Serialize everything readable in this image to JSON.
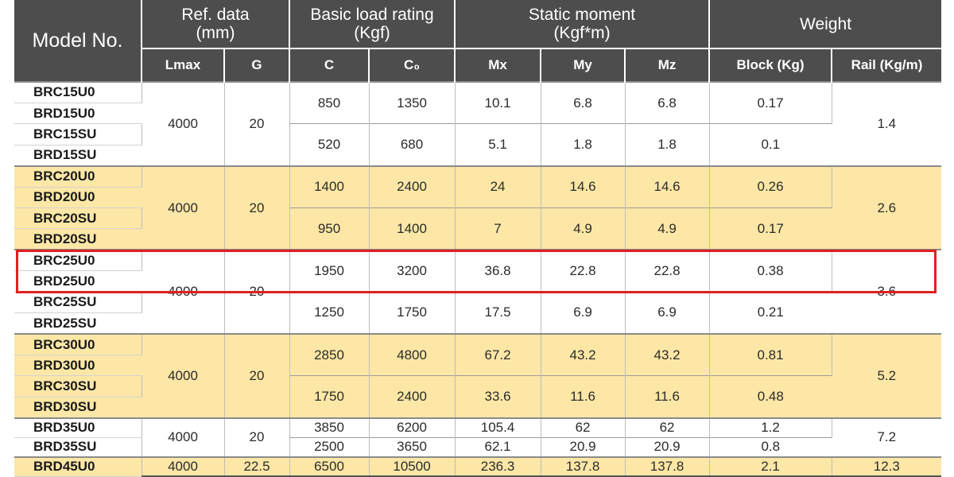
{
  "header": {
    "model_no": "Model No.",
    "ref_data": [
      "Ref. data",
      "(mm)"
    ],
    "basic_load": [
      "Basic load rating",
      "(Kgf)"
    ],
    "static_moment": [
      "Static moment",
      "(Kgf*m)"
    ],
    "weight": "Weight",
    "sub": {
      "lmax": "Lmax",
      "g": "G",
      "c": "C",
      "c0": "C₀",
      "mx": "Mx",
      "my": "My",
      "mz": "Mz",
      "block": "Block (Kg)",
      "rail": "Rail (Kg/m)"
    }
  },
  "highlight": {
    "color": "#e02020",
    "rows": [
      "BRC25U0",
      "BRD25U0"
    ]
  },
  "colors": {
    "header_bg": "#4d4d4d",
    "yellow_row": "#fde7a6"
  },
  "groups": [
    {
      "models": [
        "BRC15U0",
        "BRD15U0",
        "BRC15SU",
        "BRD15SU"
      ],
      "lmax": "4000",
      "g": "20",
      "rail": "1.4",
      "rows": [
        {
          "c": "850",
          "c0": "1350",
          "mx": "10.1",
          "my": "6.8",
          "mz": "6.8",
          "block": "0.17"
        },
        {
          "c": "520",
          "c0": "680",
          "mx": "5.1",
          "my": "1.8",
          "mz": "1.8",
          "block": "0.1"
        }
      ]
    },
    {
      "models": [
        "BRC20U0",
        "BRD20U0",
        "BRC20SU",
        "BRD20SU"
      ],
      "lmax": "4000",
      "g": "20",
      "rail": "2.6",
      "rows": [
        {
          "c": "1400",
          "c0": "2400",
          "mx": "24",
          "my": "14.6",
          "mz": "14.6",
          "block": "0.26"
        },
        {
          "c": "950",
          "c0": "1400",
          "mx": "7",
          "my": "4.9",
          "mz": "4.9",
          "block": "0.17"
        }
      ]
    },
    {
      "models": [
        "BRC25U0",
        "BRD25U0",
        "BRC25SU",
        "BRD25SU"
      ],
      "lmax": "4000",
      "g": "20",
      "rail": "3.6",
      "rows": [
        {
          "c": "1950",
          "c0": "3200",
          "mx": "36.8",
          "my": "22.8",
          "mz": "22.8",
          "block": "0.38"
        },
        {
          "c": "1250",
          "c0": "1750",
          "mx": "17.5",
          "my": "6.9",
          "mz": "6.9",
          "block": "0.21"
        }
      ]
    },
    {
      "models": [
        "BRC30U0",
        "BRD30U0",
        "BRC30SU",
        "BRD30SU"
      ],
      "lmax": "4000",
      "g": "20",
      "rail": "5.2",
      "rows": [
        {
          "c": "2850",
          "c0": "4800",
          "mx": "67.2",
          "my": "43.2",
          "mz": "43.2",
          "block": "0.81"
        },
        {
          "c": "1750",
          "c0": "2400",
          "mx": "33.6",
          "my": "11.6",
          "mz": "11.6",
          "block": "0.48"
        }
      ]
    },
    {
      "models": [
        "BRD35U0",
        "BRD35SU"
      ],
      "lmax": "4000",
      "g": "20",
      "rail": "7.2",
      "rows": [
        {
          "c": "3850",
          "c0": "6200",
          "mx": "105.4",
          "my": "62",
          "mz": "62",
          "block": "1.2"
        },
        {
          "c": "2500",
          "c0": "3650",
          "mx": "62.1",
          "my": "20.9",
          "mz": "20.9",
          "block": "0.8"
        }
      ]
    },
    {
      "models": [
        "BRD45U0"
      ],
      "lmax": "4000",
      "g": "22.5",
      "rail": "12.3",
      "rows": [
        {
          "c": "6500",
          "c0": "10500",
          "mx": "236.3",
          "my": "137.8",
          "mz": "137.8",
          "block": "2.1"
        }
      ]
    }
  ]
}
